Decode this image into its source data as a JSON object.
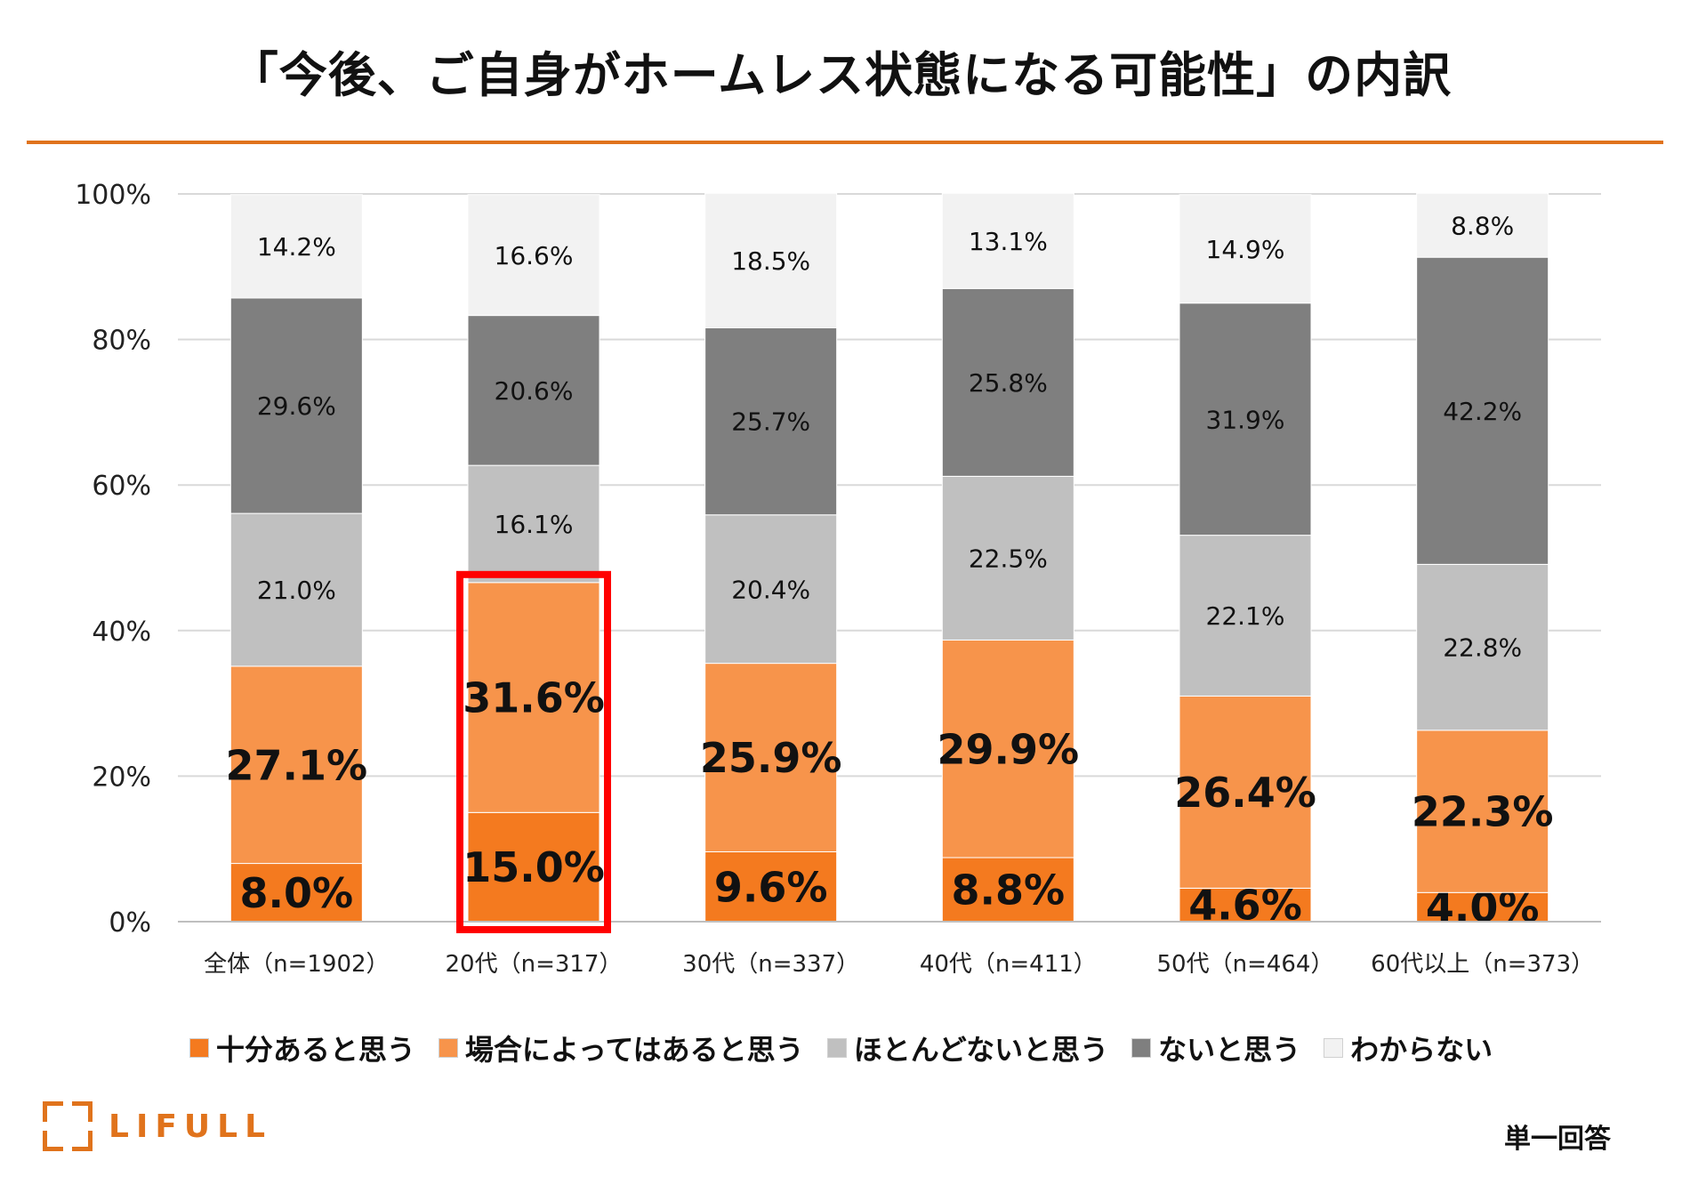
{
  "title": "「今後、ご自身がホームレス状態になる可能性」の内訳",
  "note": "単一回答",
  "logo": {
    "text": "LIFULL"
  },
  "colors": {
    "accent": "#e0731c",
    "highlight_border": "#ff0000"
  },
  "chart_data": {
    "type": "bar",
    "stacked": true,
    "categories": [
      "全体（n=1902）",
      "20代（n=317）",
      "30代（n=337）",
      "40代（n=411）",
      "50代（n=464）",
      "60代以上（n=373）"
    ],
    "series": [
      {
        "name": "十分あると思う",
        "color": "#f47a1f",
        "values": [
          8.0,
          15.0,
          9.6,
          8.8,
          4.6,
          4.0
        ],
        "labels": [
          "8.0%",
          "15.0%",
          "9.6%",
          "8.8%",
          "4.6%",
          "4.0%"
        ]
      },
      {
        "name": "場合によってはあると思う",
        "color": "#f7944b",
        "values": [
          27.1,
          31.6,
          25.9,
          29.9,
          26.4,
          22.3
        ],
        "labels": [
          "27.1%",
          "31.6%",
          "25.9%",
          "29.9%",
          "26.4%",
          "22.3%"
        ]
      },
      {
        "name": "ほとんどないと思う",
        "color": "#c0c0c0",
        "values": [
          21.0,
          16.1,
          20.4,
          22.5,
          22.1,
          22.8
        ],
        "labels": [
          "21.0%",
          "16.1%",
          "20.4%",
          "22.5%",
          "22.1%",
          "22.8%"
        ]
      },
      {
        "name": "ないと思う",
        "color": "#7f7f7f",
        "values": [
          29.6,
          20.6,
          25.7,
          25.8,
          31.9,
          42.2
        ],
        "labels": [
          "29.6%",
          "20.6%",
          "25.7%",
          "25.8%",
          "31.9%",
          "42.2%"
        ]
      },
      {
        "name": "わからない",
        "color": "#f2f2f2",
        "values": [
          14.2,
          16.6,
          18.5,
          13.1,
          14.9,
          8.8
        ],
        "labels": [
          "14.2%",
          "16.6%",
          "18.5%",
          "13.1%",
          "14.9%",
          "8.8%"
        ]
      }
    ],
    "ylim": [
      0,
      100
    ],
    "yticks": [
      "0%",
      "20%",
      "40%",
      "60%",
      "80%",
      "100%"
    ],
    "gridlines": true,
    "legend_position": "bottom",
    "highlight": {
      "category_index": 1,
      "series_indices": [
        0,
        1
      ]
    }
  }
}
